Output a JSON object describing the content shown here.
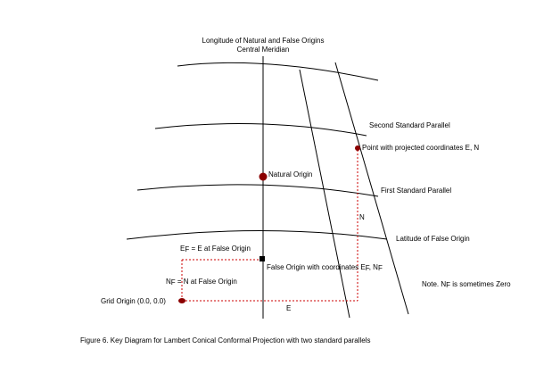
{
  "diagram": {
    "header_line1": "Longitude of Natural and False Origins",
    "header_line2": "Central Meridian",
    "second_parallel": "Second Standard Parallel",
    "first_parallel": "First Standard Parallel",
    "false_lat": "Latitude of False Origin",
    "point_label": "Point with projected coordinates   E, N",
    "natural_origin": "Natural Origin",
    "false_origin_prefix": "False Origin with coordinates  E",
    "false_origin_mid": ", N",
    "ef_letter": "E",
    "ef_rest": " =   E at False Origin",
    "nf_letter": "N",
    "nf_rest": " =   N at False Origin",
    "sub_f": "F",
    "grid_origin": "Grid Origin (0.0, 0.0)",
    "n_label": "N",
    "e_label": "E",
    "note_prefix": "Note.  N",
    "note_rest": " is sometimes Zero",
    "caption": "Figure 6.   Key Diagram for Lambert Conical Conformal Projection with two standard parallels"
  },
  "colors": {
    "line": "#000000",
    "dashed": "#cc0000",
    "origin_marker": "#8b0000"
  }
}
